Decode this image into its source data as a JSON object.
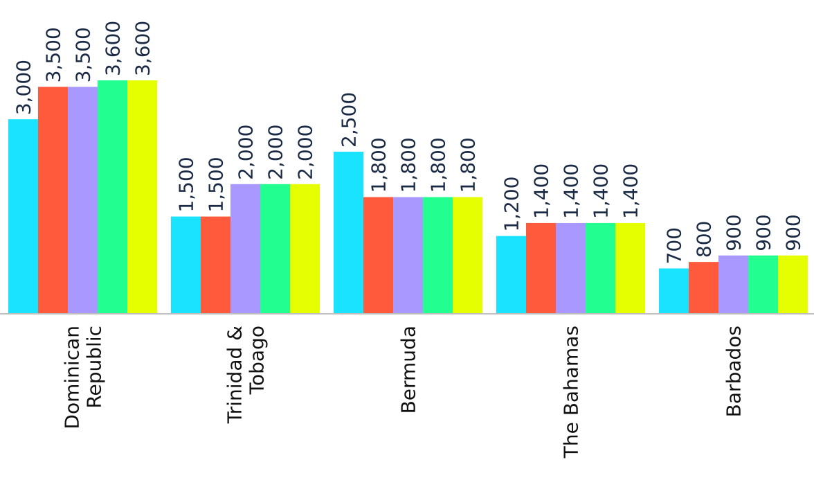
{
  "chart_data": {
    "type": "bar",
    "title": "",
    "xlabel": "",
    "ylabel": "",
    "categories": [
      [
        "Dominican",
        "Republic"
      ],
      [
        "Trinidad &",
        "Tobago"
      ],
      [
        "Bermuda"
      ],
      [
        "The Bahamas"
      ],
      [
        "Barbados"
      ]
    ],
    "series": [
      {
        "values": [
          3000,
          1500,
          2500,
          1200,
          700
        ],
        "labels": [
          "3,000",
          "1,500",
          "2,500",
          "1,200",
          "700"
        ],
        "color": "#1ae3ff"
      },
      {
        "values": [
          3500,
          1500,
          1800,
          1400,
          800
        ],
        "labels": [
          "3,500",
          "1,500",
          "1,800",
          "1,400",
          "800"
        ],
        "color": "#ff5a3c"
      },
      {
        "values": [
          3500,
          2000,
          1800,
          1400,
          900
        ],
        "labels": [
          "3,500",
          "2,000",
          "1,800",
          "1,400",
          "900"
        ],
        "color": "#a898ff"
      },
      {
        "values": [
          3600,
          2000,
          1800,
          1400,
          900
        ],
        "labels": [
          "3,600",
          "2,000",
          "1,800",
          "1,400",
          "900"
        ],
        "color": "#22ff90"
      },
      {
        "values": [
          3600,
          2000,
          1800,
          1400,
          900
        ],
        "labels": [
          "3,600",
          "2,000",
          "1,800",
          "1,400",
          "900"
        ],
        "color": "#e6ff00"
      }
    ],
    "ylim": [
      0,
      3600
    ],
    "grid": false,
    "legend": "none",
    "data_labels": true,
    "label_orientation": "vertical"
  }
}
